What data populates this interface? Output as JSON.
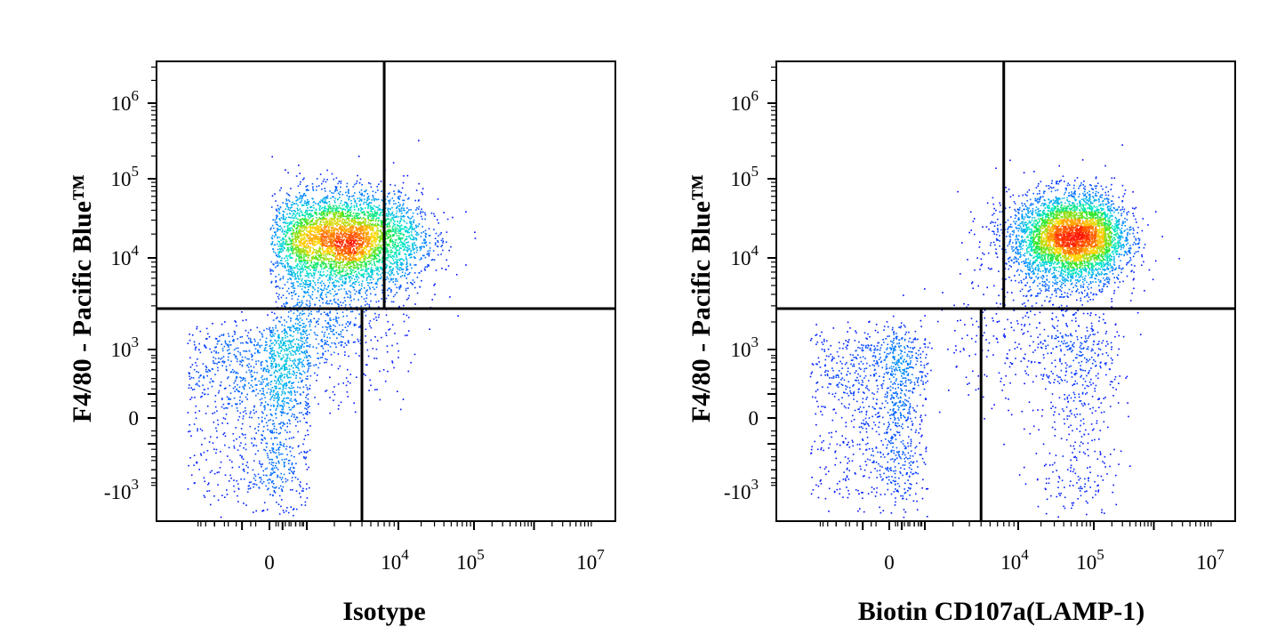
{
  "colors": {
    "low": "#0000ff",
    "mid": "#00c8ff",
    "high": "#00ff00",
    "peak": "#ffd000",
    "max": "#ff0000",
    "frame": "#000000"
  },
  "chart_data": [
    {
      "type": "scatter",
      "subtype": "flow-cytometry-density-dot-plot",
      "xlabel": "Isotype",
      "ylabel": "F4/80 - Pacific Blue™",
      "x_scale": "biexponential",
      "y_scale": "biexponential",
      "x_ticks": [
        {
          "label": "0",
          "base": "0",
          "exp": "",
          "value": 0
        },
        {
          "label": "10^4",
          "base": "10",
          "exp": "4",
          "value": 10000
        },
        {
          "label": "10^5",
          "base": "10",
          "exp": "5",
          "value": 100000
        },
        {
          "label": "10^7",
          "base": "10",
          "exp": "7",
          "value": 10000000
        }
      ],
      "y_ticks": [
        {
          "label": "10^6",
          "base": "10",
          "exp": "6",
          "value": 1000000
        },
        {
          "label": "10^5",
          "base": "10",
          "exp": "5",
          "value": 100000
        },
        {
          "label": "10^4",
          "base": "10",
          "exp": "4",
          "value": 10000
        },
        {
          "label": "10^3",
          "base": "10",
          "exp": "3",
          "value": 1000
        },
        {
          "label": "0",
          "base": "0",
          "exp": "",
          "value": 0
        },
        {
          "label": "-10^3",
          "base": "-10",
          "exp": "3",
          "value": -1000
        }
      ],
      "quadrant_gates": {
        "y_split": 2800,
        "x_split_upper": 7000,
        "x_split_lower": 4000
      },
      "populations": [
        {
          "name": "upper",
          "x_center": 2500,
          "y_center": 17000,
          "x_spread_decades": 0.45,
          "y_spread_decades": 0.3,
          "share": 0.68
        },
        {
          "name": "lower",
          "x_center": 0,
          "y_center": 300,
          "x_spread": 250,
          "y_spread": 700,
          "share": 0.22
        },
        {
          "name": "bridge",
          "x_center": 1500,
          "y_center": 1800,
          "x_spread_decades": 0.45,
          "y_spread_decades": 0.35,
          "share": 0.1
        }
      ],
      "event_count": 6500
    },
    {
      "type": "scatter",
      "subtype": "flow-cytometry-density-dot-plot",
      "xlabel": "Biotin CD107a(LAMP-1)",
      "ylabel": "F4/80 - Pacific Blue™",
      "x_scale": "biexponential",
      "y_scale": "biexponential",
      "x_ticks": [
        {
          "label": "0",
          "base": "0",
          "exp": "",
          "value": 0
        },
        {
          "label": "10^4",
          "base": "10",
          "exp": "4",
          "value": 10000
        },
        {
          "label": "10^5",
          "base": "10",
          "exp": "5",
          "value": 100000
        },
        {
          "label": "10^7",
          "base": "10",
          "exp": "7",
          "value": 10000000
        }
      ],
      "y_ticks": [
        {
          "label": "10^6",
          "base": "10",
          "exp": "6",
          "value": 1000000
        },
        {
          "label": "10^5",
          "base": "10",
          "exp": "5",
          "value": 100000
        },
        {
          "label": "10^4",
          "base": "10",
          "exp": "4",
          "value": 10000
        },
        {
          "label": "10^3",
          "base": "10",
          "exp": "3",
          "value": 1000
        },
        {
          "label": "0",
          "base": "0",
          "exp": "",
          "value": 0
        },
        {
          "label": "-10^3",
          "base": "-10",
          "exp": "3",
          "value": -1000
        }
      ],
      "quadrant_gates": {
        "y_split": 2800,
        "x_split_upper": 7000,
        "x_split_lower": 4000
      },
      "populations": [
        {
          "name": "upper",
          "x_center": 50000,
          "y_center": 18000,
          "x_spread_decades": 0.4,
          "y_spread_decades": 0.28,
          "share": 0.7
        },
        {
          "name": "lower",
          "x_center": 0,
          "y_center": 200,
          "x_spread": 280,
          "y_spread": 650,
          "share": 0.18
        },
        {
          "name": "lower-right",
          "x_center": 60000,
          "y_center": 400,
          "x_spread_decades": 0.3,
          "y_spread": 900,
          "share": 0.08
        },
        {
          "name": "bridge",
          "x_center": 8000,
          "y_center": 1500,
          "x_spread_decades": 0.5,
          "y_spread_decades": 0.4,
          "share": 0.04
        }
      ],
      "event_count": 6500
    }
  ]
}
